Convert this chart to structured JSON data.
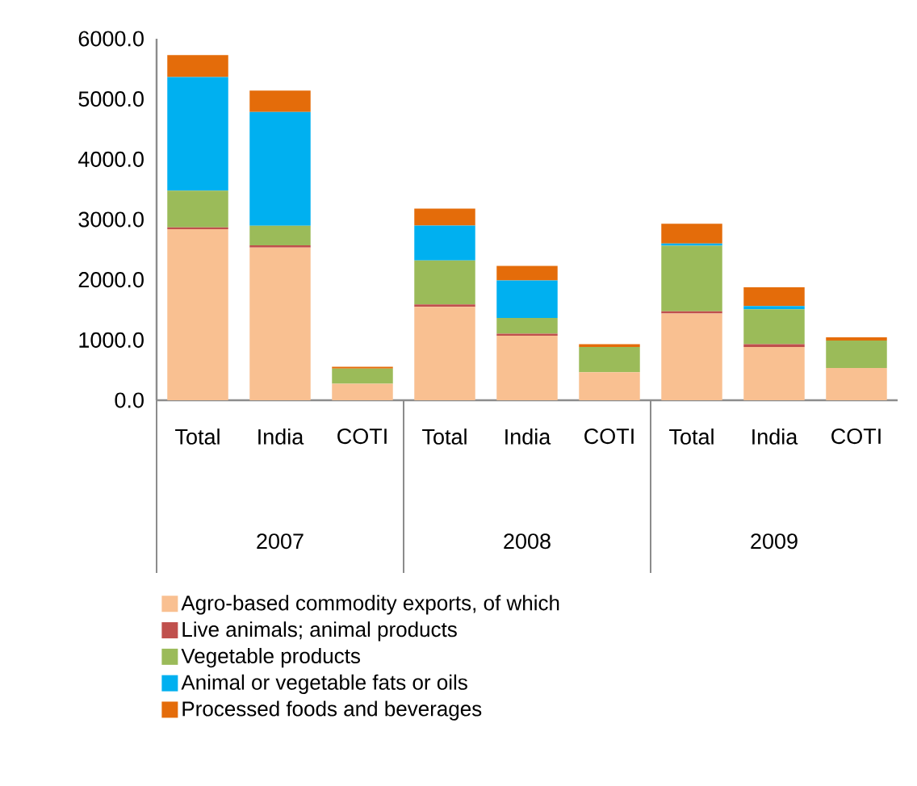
{
  "chart_data": {
    "type": "bar",
    "stacked": true,
    "legend": "bottom",
    "categories": [
      "Total",
      "India",
      "COTI",
      "Total",
      "India",
      "COTI",
      "Total",
      "India",
      "COTI"
    ],
    "annotations": [
      "2007",
      "2008",
      "2009"
    ],
    "ylim": [
      0,
      6000
    ],
    "yticks": [
      {
        "value": 0,
        "label": "0.0"
      },
      {
        "value": 1000,
        "label": "1000.0"
      },
      {
        "value": 2000,
        "label": "2000.0"
      },
      {
        "value": 3000,
        "label": "3000.0"
      },
      {
        "value": 4000,
        "label": "4000.0"
      },
      {
        "value": 5000,
        "label": "5000.0"
      },
      {
        "value": 6000,
        "label": "6000.0"
      }
    ],
    "series": [
      {
        "name": "Agro-based commodity exports, of which",
        "color": "#f9c091",
        "values": [
          2840,
          2535,
          275,
          1550,
          1070,
          465,
          1440,
          885,
          535
        ]
      },
      {
        "name": "Live animals; animal products",
        "color": "#c0504d",
        "values": [
          30,
          35,
          0,
          40,
          35,
          0,
          35,
          45,
          0
        ]
      },
      {
        "name": "Vegetable products",
        "color": "#9bbb59",
        "values": [
          610,
          325,
          250,
          730,
          260,
          420,
          1090,
          580,
          455
        ]
      },
      {
        "name": "Animal or vegetable fats or oils",
        "color": "#00b0f0",
        "values": [
          1885,
          1890,
          0,
          580,
          625,
          0,
          35,
          55,
          0
        ]
      },
      {
        "name": "Processed foods and beverages",
        "color": "#e46c0a",
        "values": [
          365,
          355,
          30,
          280,
          240,
          45,
          330,
          310,
          55
        ]
      }
    ]
  }
}
